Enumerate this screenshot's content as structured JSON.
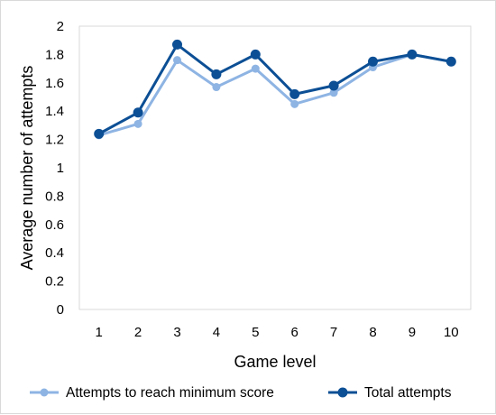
{
  "chart_data": {
    "type": "line",
    "title": "",
    "xlabel": "Game level",
    "ylabel": "Average number of attempts",
    "x": [
      "1",
      "2",
      "3",
      "4",
      "5",
      "6",
      "7",
      "8",
      "9",
      "10"
    ],
    "y_ticks": [
      "0",
      "0.2",
      "0.4",
      "0.6",
      "0.8",
      "1",
      "1.2",
      "1.4",
      "1.6",
      "1.8",
      "2"
    ],
    "ylim": [
      0,
      2
    ],
    "grid": false,
    "legend_position": "bottom",
    "series": [
      {
        "name": "Attempts to reach minimum score",
        "color": "#8eb4e3",
        "values": [
          1.23,
          1.31,
          1.76,
          1.57,
          1.7,
          1.45,
          1.53,
          1.71,
          1.8,
          1.75
        ]
      },
      {
        "name": "Total attempts",
        "color": "#0c4f95",
        "values": [
          1.24,
          1.39,
          1.87,
          1.66,
          1.8,
          1.52,
          1.58,
          1.75,
          1.8,
          1.75
        ]
      }
    ]
  }
}
